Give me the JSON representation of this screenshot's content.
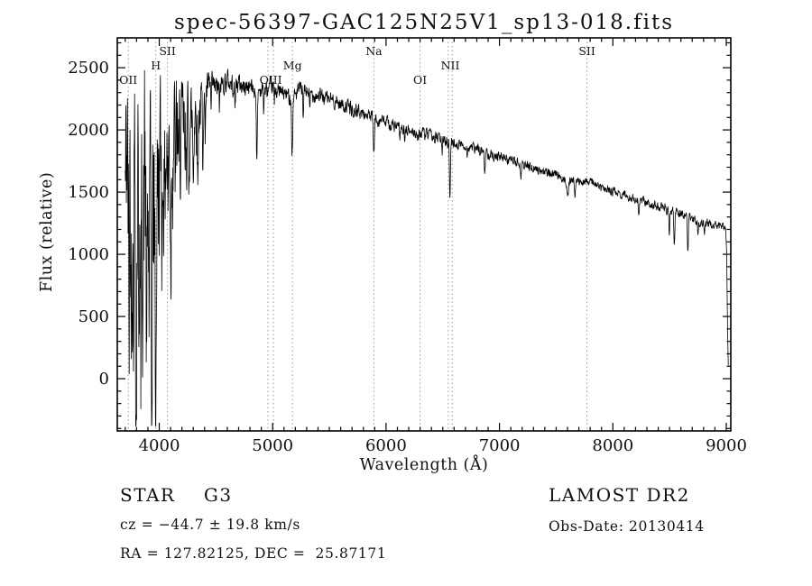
{
  "page": {
    "background": "#ffffff",
    "text_color": "#111111"
  },
  "footer": {
    "object_type": "STAR    G3",
    "survey": "LAMOST DR2",
    "cz": "cz = −44.7 ± 19.8 km/s",
    "obs_date": "Obs-Date: 20130414",
    "ra_dec": "RA = 127.82125, DEC =  25.87171"
  },
  "chart_data": {
    "type": "line",
    "title": "spec-56397-GAC125N25V1_sp13-018.fits",
    "xlabel": "Wavelength (Å)",
    "ylabel": "Flux (relative)",
    "xlim": [
      3630,
      9040
    ],
    "ylim": [
      -420,
      2740
    ],
    "x_ticks": [
      4000,
      5000,
      6000,
      7000,
      8000,
      9000
    ],
    "y_ticks": [
      0,
      500,
      1000,
      1500,
      2000,
      2500
    ],
    "x_minor_step": 100,
    "y_minor_step": 100,
    "grid": false,
    "legend": "none",
    "line_color": "#000000",
    "marker_line_color": "#999999",
    "line_markers": [
      {
        "label": "OII",
        "row": 2,
        "wavelengths": [
          3727
        ]
      },
      {
        "label": "H",
        "row": 1,
        "wavelengths": [
          3970
        ]
      },
      {
        "label": "SII",
        "row": 0,
        "wavelengths": [
          4072
        ]
      },
      {
        "label": "OIII",
        "row": 2,
        "wavelengths": [
          4959,
          5007
        ]
      },
      {
        "label": "Mg",
        "row": 1,
        "wavelengths": [
          5175
        ]
      },
      {
        "label": "Na",
        "row": 0,
        "wavelengths": [
          5893
        ]
      },
      {
        "label": "OI",
        "row": 2,
        "wavelengths": [
          6300
        ]
      },
      {
        "label": "NII",
        "row": 1,
        "wavelengths": [
          6548,
          6583
        ]
      },
      {
        "label": "SII",
        "row": 0,
        "wavelengths": [
          7772
        ]
      }
    ],
    "spectrum": {
      "wavelength_start": 3700,
      "wavelength_end": 9018,
      "sample_step": 2.5,
      "noise_seed": 42,
      "continuum": [
        [
          3700,
          1550
        ],
        [
          3715,
          2050
        ],
        [
          3730,
          1400
        ],
        [
          3745,
          1950
        ],
        [
          3760,
          1500
        ],
        [
          3780,
          1980
        ],
        [
          3800,
          1450
        ],
        [
          3820,
          1950
        ],
        [
          3845,
          1400
        ],
        [
          3870,
          1900
        ],
        [
          3900,
          1350
        ],
        [
          3925,
          1500
        ],
        [
          3945,
          1550
        ],
        [
          3965,
          1500
        ],
        [
          3985,
          1600
        ],
        [
          4000,
          1850
        ],
        [
          4050,
          1900
        ],
        [
          4100,
          1950
        ],
        [
          4150,
          2050
        ],
        [
          4200,
          2020
        ],
        [
          4250,
          2100
        ],
        [
          4300,
          2160
        ],
        [
          4350,
          2220
        ],
        [
          4400,
          2300
        ],
        [
          4450,
          2350
        ],
        [
          4500,
          2330
        ],
        [
          4550,
          2370
        ],
        [
          4600,
          2400
        ],
        [
          4650,
          2360
        ],
        [
          4700,
          2380
        ],
        [
          4750,
          2340
        ],
        [
          4800,
          2360
        ],
        [
          4850,
          2310
        ],
        [
          4900,
          2330
        ],
        [
          4950,
          2310
        ],
        [
          5000,
          2350
        ],
        [
          5050,
          2310
        ],
        [
          5100,
          2290
        ],
        [
          5150,
          2270
        ],
        [
          5200,
          2290
        ],
        [
          5250,
          2330
        ],
        [
          5300,
          2310
        ],
        [
          5350,
          2290
        ],
        [
          5400,
          2280
        ],
        [
          5450,
          2260
        ],
        [
          5500,
          2250
        ],
        [
          5550,
          2230
        ],
        [
          5600,
          2210
        ],
        [
          5650,
          2190
        ],
        [
          5700,
          2170
        ],
        [
          5750,
          2150
        ],
        [
          5800,
          2130
        ],
        [
          5850,
          2110
        ],
        [
          5900,
          2090
        ],
        [
          5950,
          2080
        ],
        [
          6000,
          2060
        ],
        [
          6100,
          2020
        ],
        [
          6200,
          1990
        ],
        [
          6300,
          1975
        ],
        [
          6400,
          1950
        ],
        [
          6500,
          1925
        ],
        [
          6600,
          1895
        ],
        [
          6700,
          1870
        ],
        [
          6800,
          1845
        ],
        [
          6900,
          1815
        ],
        [
          7000,
          1785
        ],
        [
          7100,
          1755
        ],
        [
          7200,
          1725
        ],
        [
          7300,
          1695
        ],
        [
          7400,
          1665
        ],
        [
          7500,
          1635
        ],
        [
          7600,
          1605
        ],
        [
          7700,
          1585
        ],
        [
          7760,
          1595
        ],
        [
          7820,
          1575
        ],
        [
          7900,
          1535
        ],
        [
          8000,
          1505
        ],
        [
          8100,
          1475
        ],
        [
          8200,
          1445
        ],
        [
          8300,
          1415
        ],
        [
          8400,
          1385
        ],
        [
          8500,
          1355
        ],
        [
          8600,
          1325
        ],
        [
          8700,
          1285
        ],
        [
          8800,
          1255
        ],
        [
          8900,
          1235
        ],
        [
          8960,
          1220
        ],
        [
          8995,
          1205
        ],
        [
          9003,
          1000
        ],
        [
          9008,
          650
        ],
        [
          9013,
          320
        ],
        [
          9018,
          80
        ]
      ],
      "noise_amplitude": [
        [
          3700,
          620
        ],
        [
          3800,
          660
        ],
        [
          3900,
          680
        ],
        [
          3960,
          600
        ],
        [
          4000,
          500
        ],
        [
          4100,
          400
        ],
        [
          4200,
          300
        ],
        [
          4300,
          210
        ],
        [
          4380,
          140
        ],
        [
          4450,
          95
        ],
        [
          4550,
          80
        ],
        [
          4700,
          68
        ],
        [
          5000,
          58
        ],
        [
          5500,
          50
        ],
        [
          6000,
          44
        ],
        [
          6500,
          40
        ],
        [
          7000,
          34
        ],
        [
          7500,
          31
        ],
        [
          8000,
          29
        ],
        [
          8500,
          31
        ],
        [
          8900,
          30
        ],
        [
          9020,
          25
        ]
      ],
      "absorption_lines": [
        [
          3734,
          900,
          4
        ],
        [
          3750,
          1100,
          4
        ],
        [
          3771,
          850,
          4
        ],
        [
          3797,
          1700,
          5
        ],
        [
          3820,
          1000,
          4
        ],
        [
          3835,
          1600,
          5
        ],
        [
          3860,
          800,
          4
        ],
        [
          3889,
          1550,
          5
        ],
        [
          3910,
          700,
          4
        ],
        [
          3934,
          1750,
          6
        ],
        [
          3969,
          1650,
          6
        ],
        [
          4026,
          550,
          4
        ],
        [
          4046,
          450,
          4
        ],
        [
          4077,
          450,
          4
        ],
        [
          4102,
          950,
          5
        ],
        [
          4144,
          480,
          4
        ],
        [
          4173,
          420,
          4
        ],
        [
          4227,
          560,
          4
        ],
        [
          4260,
          420,
          4
        ],
        [
          4300,
          520,
          5
        ],
        [
          4340,
          620,
          5
        ],
        [
          4383,
          470,
          4
        ],
        [
          4405,
          360,
          4
        ],
        [
          4457,
          220,
          4
        ],
        [
          4531,
          200,
          5
        ],
        [
          4668,
          200,
          5
        ],
        [
          4861,
          590,
          6
        ],
        [
          4921,
          160,
          4
        ],
        [
          5015,
          150,
          4
        ],
        [
          5169,
          300,
          5
        ],
        [
          5175,
          330,
          6
        ],
        [
          5270,
          230,
          5
        ],
        [
          5328,
          170,
          4
        ],
        [
          5711,
          90,
          4
        ],
        [
          5890,
          220,
          5
        ],
        [
          5896,
          180,
          5
        ],
        [
          6122,
          130,
          4
        ],
        [
          6163,
          100,
          4
        ],
        [
          6280,
          90,
          5
        ],
        [
          6495,
          130,
          5
        ],
        [
          6563,
          450,
          6
        ],
        [
          6717,
          90,
          4
        ],
        [
          6870,
          140,
          7
        ],
        [
          7190,
          90,
          7
        ],
        [
          7600,
          140,
          12
        ],
        [
          7665,
          110,
          8
        ],
        [
          8230,
          110,
          6
        ],
        [
          8498,
          190,
          5
        ],
        [
          8542,
          270,
          6
        ],
        [
          8662,
          280,
          6
        ],
        [
          8750,
          110,
          4
        ],
        [
          8806,
          110,
          4
        ]
      ]
    }
  }
}
